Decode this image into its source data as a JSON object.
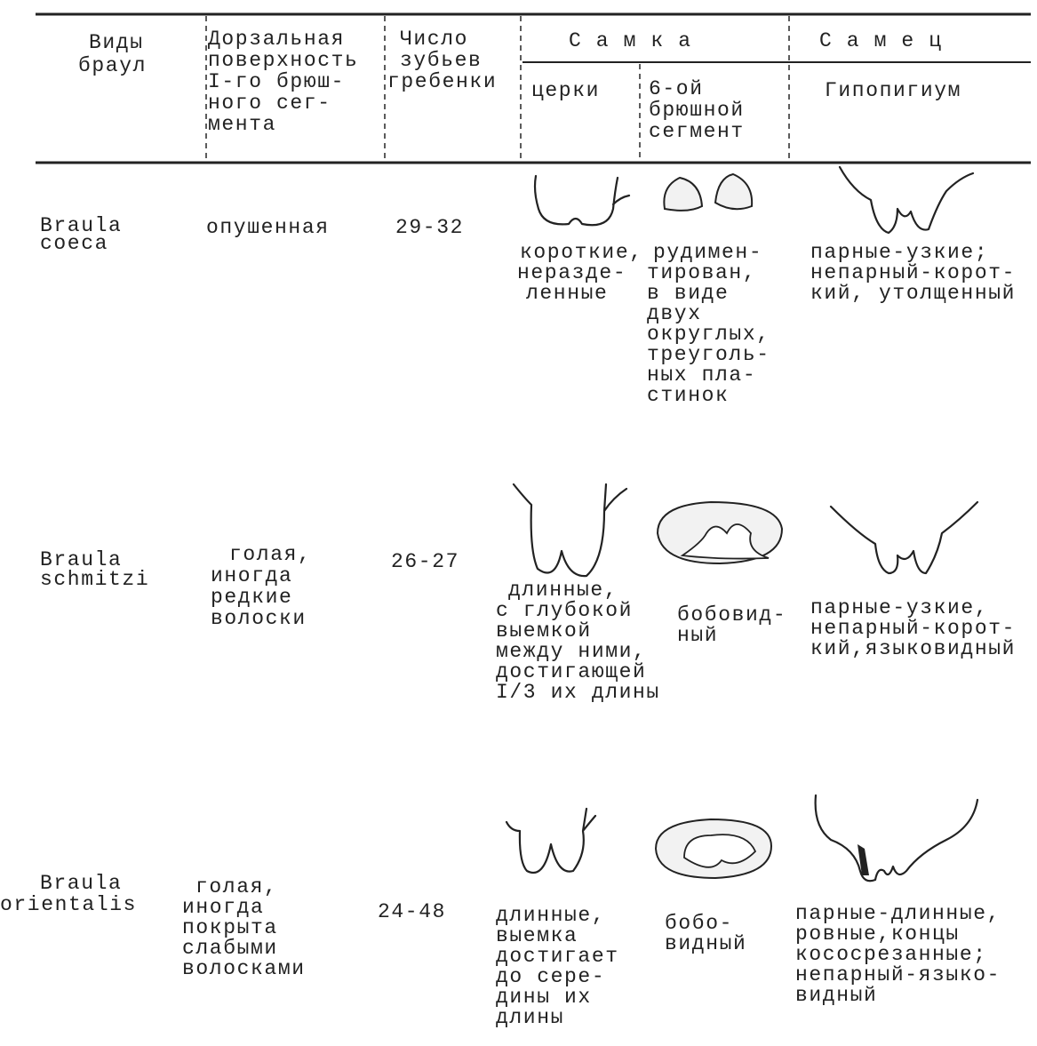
{
  "header": {
    "species": [
      "Виды",
      "браул"
    ],
    "dorsal": [
      "Дорзальная",
      "поверхность",
      "I-го брюш-",
      "ного сег-",
      "мента"
    ],
    "teeth": [
      "Число",
      "зубьев",
      "гребенки"
    ],
    "female": "С а м к а",
    "cerci": "церки",
    "segment6": [
      "6-ой",
      "брюшной",
      "сегмент"
    ],
    "male": "С а м е ц",
    "hypopygium": "Гипопигиум"
  },
  "rows": [
    {
      "species": [
        "Braula",
        "coeca"
      ],
      "dorsal": [
        "опушенная"
      ],
      "teeth": "29-32",
      "cerci": [
        "короткие,",
        "неразде-",
        "ленные"
      ],
      "segment6": [
        "рудимен-",
        "тирован,",
        "в виде",
        "двух",
        "округлых,",
        "треуголь-",
        "ных пла-",
        "стинок"
      ],
      "hypopygium": [
        "парные-узкие;",
        "непарный-корот-",
        "кий, утолщенный"
      ]
    },
    {
      "species": [
        "Braula",
        "schmitzi"
      ],
      "dorsal": [
        "голая,",
        "иногда",
        "редкие",
        "волоски"
      ],
      "teeth": "26-27",
      "cerci": [
        "длинные,",
        "с глубокой",
        "выемкой",
        "между ними,",
        "достигающей",
        "I/3 их длины"
      ],
      "segment6": [
        "бобовид-",
        "ный"
      ],
      "hypopygium": [
        "парные-узкие,",
        "непарный-корот-",
        "кий,языковидный"
      ]
    },
    {
      "species": [
        "Braula",
        "orientalis"
      ],
      "dorsal": [
        "голая,",
        "иногда",
        "покрыта",
        "слабыми",
        "волосками"
      ],
      "teeth": "24-48",
      "cerci": [
        "длинные,",
        "выемка",
        "достигает",
        "до сере-",
        "дины их",
        "длины"
      ],
      "segment6": [
        "бобо-",
        "видный"
      ],
      "hypopygium": [
        "парные-длинные,",
        "ровные,концы",
        "кососрезанные;",
        "непарный-языко-",
        "видный"
      ]
    }
  ]
}
